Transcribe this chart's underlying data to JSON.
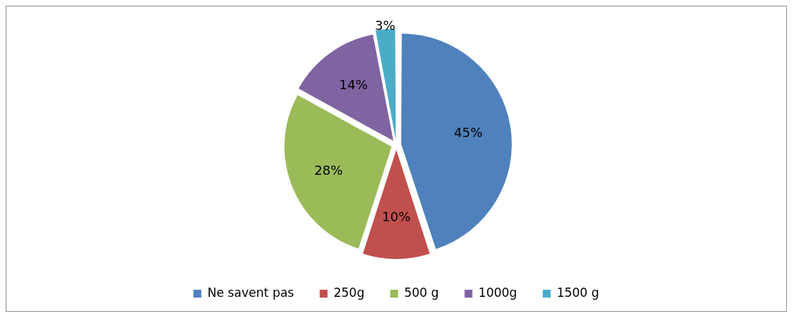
{
  "chart_data": {
    "type": "pie",
    "categories": [
      "Ne savent pas",
      "250g",
      "500 g",
      "1000g",
      "1500 g"
    ],
    "values": [
      45,
      10,
      28,
      14,
      3
    ],
    "colors": [
      "#4f81bd",
      "#c0504d",
      "#9bbb59",
      "#8064a2",
      "#4bacc6"
    ],
    "value_labels": [
      "45%",
      "10%",
      "28%",
      "14%",
      "3%"
    ],
    "legend": "bottom"
  }
}
